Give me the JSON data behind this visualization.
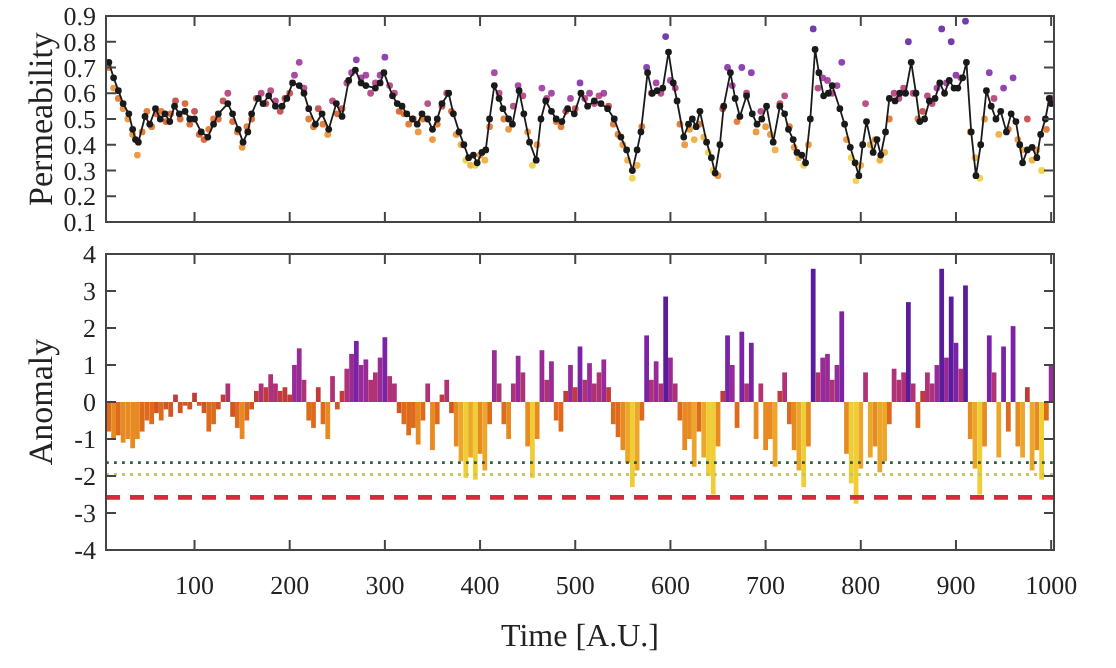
{
  "chart_data": [
    {
      "type": "scatter",
      "ylabel": "Permeability",
      "xlim": [
        7,
        1003
      ],
      "ylim": [
        0.1,
        0.9
      ],
      "xticks": [
        100,
        200,
        300,
        400,
        500,
        600,
        700,
        800,
        900,
        1000
      ],
      "yticks": [
        0.1,
        0.2,
        0.3,
        0.4,
        0.5,
        0.6,
        0.7,
        0.8,
        0.9
      ],
      "tick_labels": "y",
      "marker": "circle",
      "series": [
        {
          "x": [
            10,
            15,
            20,
            25,
            30,
            35,
            40,
            45,
            50,
            55,
            60,
            65,
            70,
            75,
            80,
            85,
            90,
            95,
            100,
            105,
            110,
            115,
            120,
            125,
            130,
            135,
            140,
            145,
            150,
            155,
            160,
            165,
            170,
            175,
            180,
            185,
            190,
            195,
            200,
            205,
            210,
            215,
            220,
            225,
            230,
            235,
            240,
            245,
            250,
            255,
            260,
            265,
            270,
            275,
            280,
            285,
            290,
            295,
            300,
            305,
            310,
            315,
            320,
            325,
            330,
            335,
            340,
            345,
            350,
            355,
            360,
            365,
            370,
            375,
            380,
            385,
            390,
            395,
            400,
            405,
            410,
            415,
            420,
            425,
            430,
            435,
            440,
            445,
            450,
            455,
            460,
            465,
            470,
            475,
            480,
            485,
            490,
            495,
            500,
            505,
            510,
            515,
            520,
            525,
            530,
            535,
            540,
            545,
            550,
            555,
            560,
            565,
            570,
            575,
            580,
            585,
            590,
            595,
            600,
            605,
            610,
            615,
            620,
            625,
            630,
            635,
            640,
            645,
            650,
            655,
            660,
            665,
            670,
            675,
            680,
            685,
            690,
            695,
            700,
            705,
            710,
            715,
            720,
            725,
            730,
            735,
            740,
            745,
            750,
            755,
            760,
            765,
            770,
            775,
            780,
            785,
            790,
            795,
            800,
            805,
            810,
            815,
            820,
            825,
            830,
            835,
            840,
            845,
            850,
            855,
            860,
            865,
            870,
            875,
            880,
            885,
            890,
            895,
            900,
            905,
            910,
            915,
            920,
            925,
            930,
            935,
            940,
            945,
            950,
            955,
            960,
            965,
            970,
            975,
            980,
            985,
            990,
            995,
            1000
          ],
          "values": [
            0.7,
            0.62,
            0.58,
            0.54,
            0.5,
            0.44,
            0.36,
            0.45,
            0.53,
            0.47,
            0.52,
            0.53,
            0.49,
            0.52,
            0.57,
            0.5,
            0.56,
            0.48,
            0.53,
            0.44,
            0.42,
            0.46,
            0.5,
            0.5,
            0.57,
            0.6,
            0.49,
            0.45,
            0.39,
            0.47,
            0.5,
            0.58,
            0.6,
            0.56,
            0.61,
            0.57,
            0.53,
            0.58,
            0.6,
            0.67,
            0.72,
            0.62,
            0.5,
            0.47,
            0.54,
            0.48,
            0.44,
            0.57,
            0.52,
            0.54,
            0.64,
            0.68,
            0.73,
            0.66,
            0.67,
            0.6,
            0.64,
            0.67,
            0.74,
            0.63,
            0.6,
            0.53,
            0.52,
            0.48,
            0.5,
            0.45,
            0.5,
            0.56,
            0.42,
            0.48,
            0.55,
            0.6,
            0.53,
            0.44,
            0.4,
            0.34,
            0.32,
            0.32,
            0.36,
            0.34,
            0.47,
            0.68,
            0.6,
            0.5,
            0.46,
            0.55,
            0.63,
            0.59,
            0.45,
            0.32,
            0.4,
            0.62,
            0.58,
            0.6,
            0.49,
            0.47,
            0.53,
            0.58,
            0.54,
            0.64,
            0.58,
            0.6,
            0.56,
            0.59,
            0.6,
            0.55,
            0.48,
            0.44,
            0.4,
            0.34,
            0.27,
            0.32,
            0.47,
            0.7,
            0.6,
            0.64,
            0.6,
            0.82,
            0.65,
            0.62,
            0.48,
            0.4,
            0.46,
            0.42,
            0.48,
            0.43,
            0.37,
            0.3,
            0.28,
            0.54,
            0.7,
            0.63,
            0.49,
            0.7,
            0.6,
            0.68,
            0.45,
            0.53,
            0.47,
            0.44,
            0.38,
            0.56,
            0.59,
            0.47,
            0.39,
            0.35,
            0.32,
            0.4,
            0.85,
            0.62,
            0.66,
            0.65,
            0.6,
            0.63,
            0.72,
            0.42,
            0.35,
            0.26,
            0.32,
            0.56,
            0.4,
            0.42,
            0.34,
            0.37,
            0.5,
            0.6,
            0.58,
            0.62,
            0.8,
            0.6,
            0.5,
            0.53,
            0.59,
            0.56,
            0.62,
            0.85,
            0.64,
            0.8,
            0.67,
            0.66,
            0.88,
            0.45,
            0.35,
            0.27,
            0.5,
            0.68,
            0.58,
            0.44,
            0.62,
            0.46,
            0.66,
            0.42,
            0.38,
            0.5,
            0.34,
            0.38,
            0.3,
            0.46,
            0.58
          ],
          "colors": [
            "#de6a1c",
            "#e78a22",
            "#de6a1c",
            "#e78a22",
            "#e78a22",
            "#e78a22",
            "#e78a22",
            "#de6a1c",
            "#de6a1c",
            "#de6a1c",
            "#d3551f",
            "#de6a1c",
            "#d3551f",
            "#d3551f",
            "#c23b3b",
            "#d3551f",
            "#d3551f",
            "#d3551f",
            "#c23b3b",
            "#d3551f",
            "#d3551f",
            "#de6a1c",
            "#de6a1c",
            "#d3551f",
            "#c23b3b",
            "#b03276",
            "#d3551f",
            "#de6a1c",
            "#e78a22",
            "#de6a1c",
            "#d3551f",
            "#c23b3b",
            "#b03276",
            "#c23b3b",
            "#b03276",
            "#b03276",
            "#c23b3b",
            "#c23b3b",
            "#c23b3b",
            "#982b98",
            "#982b98",
            "#b03276",
            "#de6a1c",
            "#de6a1c",
            "#c23b3b",
            "#de6a1c",
            "#e78a22",
            "#b03276",
            "#d3551f",
            "#c23b3b",
            "#b03276",
            "#982b98",
            "#7b23a6",
            "#982b98",
            "#982b98",
            "#b03276",
            "#b03276",
            "#982b98",
            "#7b23a6",
            "#b03276",
            "#b03276",
            "#d3551f",
            "#de6a1c",
            "#de6a1c",
            "#de6a1c",
            "#e78a22",
            "#de6a1c",
            "#b03276",
            "#e78a22",
            "#de6a1c",
            "#c23b3b",
            "#b03276",
            "#d3551f",
            "#e78a22",
            "#eca72a",
            "#f0cd34",
            "#eca72a",
            "#f0cd34",
            "#e78a22",
            "#eca72a",
            "#de6a1c",
            "#982b98",
            "#b03276",
            "#de6a1c",
            "#e78a22",
            "#b03276",
            "#982b98",
            "#b03276",
            "#e78a22",
            "#f0cd34",
            "#e78a22",
            "#982b98",
            "#b03276",
            "#982b98",
            "#de6a1c",
            "#de6a1c",
            "#c23b3b",
            "#982b98",
            "#c23b3b",
            "#7b23a6",
            "#b03276",
            "#982b98",
            "#b03276",
            "#b03276",
            "#982b98",
            "#c23b3b",
            "#de6a1c",
            "#de6a1c",
            "#e78a22",
            "#eca72a",
            "#f0cd34",
            "#eca72a",
            "#de6a1c",
            "#7b23a6",
            "#b03276",
            "#982b98",
            "#b03276",
            "#5a1b9c",
            "#982b98",
            "#b03276",
            "#de6a1c",
            "#e78a22",
            "#e78a22",
            "#eca72a",
            "#de6a1c",
            "#eca72a",
            "#f0cd34",
            "#f0cd34",
            "#e78a22",
            "#c23b3b",
            "#7b23a6",
            "#982b98",
            "#de6a1c",
            "#7b23a6",
            "#b03276",
            "#7b23a6",
            "#e78a22",
            "#b03276",
            "#e78a22",
            "#e78a22",
            "#eca72a",
            "#c23b3b",
            "#b03276",
            "#de6a1c",
            "#e78a22",
            "#eca72a",
            "#f0cd34",
            "#e78a22",
            "#5a1b9c",
            "#b03276",
            "#982b98",
            "#982b98",
            "#b03276",
            "#982b98",
            "#7b23a6",
            "#e78a22",
            "#f0cd34",
            "#f0cd34",
            "#eca72a",
            "#b03276",
            "#eca72a",
            "#e78a22",
            "#eca72a",
            "#eca72a",
            "#de6a1c",
            "#b03276",
            "#b03276",
            "#b03276",
            "#5a1b9c",
            "#b03276",
            "#de6a1c",
            "#c23b3b",
            "#b03276",
            "#b03276",
            "#982b98",
            "#5a1b9c",
            "#982b98",
            "#5a1b9c",
            "#7b23a6",
            "#b03276",
            "#5a1b9c",
            "#e78a22",
            "#eca72a",
            "#f0cd34",
            "#e78a22",
            "#7b23a6",
            "#b03276",
            "#eca72a",
            "#7b23a6",
            "#de6a1c",
            "#7b23a6",
            "#e78a22",
            "#eca72a",
            "#c23b3b",
            "#eca72a",
            "#e78a22",
            "#f0cd34",
            "#de6a1c",
            "#982b98"
          ]
        },
        {
          "type": "line",
          "color": "#1a1a1a",
          "x": [
            10,
            15,
            20,
            25,
            31,
            35,
            38,
            41,
            48,
            53,
            59,
            64,
            69,
            74,
            79,
            84,
            90,
            95,
            100,
            107,
            114,
            120,
            125,
            135,
            140,
            146,
            151,
            156,
            160,
            167,
            172,
            178,
            185,
            192,
            197,
            203,
            210,
            215,
            220,
            227,
            234,
            241,
            249,
            255,
            262,
            269,
            275,
            280,
            290,
            295,
            299,
            308,
            313,
            318,
            323,
            329,
            334,
            339,
            345,
            350,
            355,
            360,
            367,
            372,
            378,
            383,
            388,
            393,
            397,
            402,
            406,
            410,
            415,
            420,
            424,
            430,
            434,
            441,
            446,
            452,
            459,
            464,
            469,
            475,
            480,
            486,
            492,
            499,
            506,
            513,
            520,
            527,
            534,
            541,
            548,
            554,
            560,
            565,
            569,
            576,
            581,
            586,
            592,
            598,
            603,
            607,
            614,
            619,
            623,
            627,
            631,
            638,
            643,
            647,
            652,
            656,
            663,
            668,
            673,
            680,
            686,
            691,
            696,
            701,
            708,
            715,
            720,
            724,
            729,
            733,
            738,
            742,
            747,
            752,
            756,
            761,
            766,
            770,
            778,
            783,
            789,
            794,
            798,
            802,
            806,
            813,
            817,
            821,
            826,
            830,
            836,
            841,
            847,
            853,
            858,
            862,
            867,
            872,
            878,
            883,
            888,
            893,
            898,
            902,
            907,
            911,
            916,
            921,
            926,
            932,
            937,
            942,
            947,
            953,
            958,
            963,
            967,
            970,
            975,
            980,
            985,
            989,
            994,
            998,
            1000
          ],
          "values": [
            0.72,
            0.66,
            0.61,
            0.56,
            0.52,
            0.46,
            0.42,
            0.41,
            0.51,
            0.48,
            0.54,
            0.5,
            0.52,
            0.49,
            0.55,
            0.52,
            0.53,
            0.5,
            0.5,
            0.45,
            0.43,
            0.48,
            0.52,
            0.56,
            0.52,
            0.46,
            0.41,
            0.45,
            0.52,
            0.58,
            0.56,
            0.59,
            0.55,
            0.55,
            0.58,
            0.64,
            0.63,
            0.6,
            0.54,
            0.48,
            0.52,
            0.46,
            0.56,
            0.51,
            0.65,
            0.69,
            0.64,
            0.63,
            0.62,
            0.64,
            0.68,
            0.59,
            0.56,
            0.55,
            0.52,
            0.5,
            0.48,
            0.52,
            0.5,
            0.46,
            0.5,
            0.56,
            0.6,
            0.52,
            0.45,
            0.4,
            0.35,
            0.36,
            0.33,
            0.37,
            0.38,
            0.5,
            0.63,
            0.58,
            0.54,
            0.5,
            0.48,
            0.61,
            0.52,
            0.41,
            0.34,
            0.5,
            0.57,
            0.53,
            0.5,
            0.49,
            0.54,
            0.52,
            0.6,
            0.55,
            0.57,
            0.56,
            0.54,
            0.5,
            0.43,
            0.38,
            0.3,
            0.38,
            0.45,
            0.68,
            0.6,
            0.61,
            0.62,
            0.76,
            0.64,
            0.57,
            0.43,
            0.48,
            0.5,
            0.47,
            0.53,
            0.41,
            0.35,
            0.29,
            0.4,
            0.55,
            0.68,
            0.58,
            0.51,
            0.59,
            0.52,
            0.48,
            0.5,
            0.55,
            0.41,
            0.55,
            0.52,
            0.46,
            0.42,
            0.37,
            0.36,
            0.33,
            0.5,
            0.77,
            0.68,
            0.59,
            0.6,
            0.63,
            0.54,
            0.48,
            0.39,
            0.33,
            0.28,
            0.4,
            0.49,
            0.37,
            0.42,
            0.36,
            0.45,
            0.58,
            0.57,
            0.6,
            0.6,
            0.72,
            0.6,
            0.49,
            0.5,
            0.57,
            0.58,
            0.64,
            0.6,
            0.65,
            0.62,
            0.62,
            0.66,
            0.72,
            0.45,
            0.28,
            0.4,
            0.61,
            0.55,
            0.5,
            0.53,
            0.45,
            0.52,
            0.49,
            0.4,
            0.33,
            0.38,
            0.39,
            0.35,
            0.44,
            0.5,
            0.58,
            0.56
          ]
        }
      ]
    },
    {
      "type": "bar",
      "xlabel": "Time [A.U.]",
      "ylabel": "Anomaly",
      "xlim": [
        7,
        1003
      ],
      "ylim": [
        -4,
        4
      ],
      "xticks": [
        100,
        200,
        300,
        400,
        500,
        600,
        700,
        800,
        900,
        1000
      ],
      "yticks": [
        -4,
        -3,
        -2,
        -1,
        0,
        1,
        2,
        3,
        4
      ],
      "x": [
        10,
        15,
        20,
        25,
        30,
        35,
        40,
        45,
        50,
        55,
        60,
        65,
        70,
        75,
        80,
        85,
        90,
        95,
        100,
        105,
        110,
        115,
        120,
        125,
        130,
        135,
        140,
        145,
        150,
        155,
        160,
        165,
        170,
        175,
        180,
        185,
        190,
        195,
        200,
        205,
        210,
        215,
        220,
        225,
        230,
        235,
        240,
        245,
        250,
        255,
        260,
        265,
        270,
        275,
        280,
        285,
        290,
        295,
        300,
        305,
        310,
        315,
        320,
        325,
        330,
        335,
        340,
        345,
        350,
        355,
        360,
        365,
        370,
        375,
        380,
        385,
        390,
        395,
        400,
        405,
        410,
        415,
        420,
        425,
        430,
        435,
        440,
        445,
        450,
        455,
        460,
        465,
        470,
        475,
        480,
        485,
        490,
        495,
        500,
        505,
        510,
        515,
        520,
        525,
        530,
        535,
        540,
        545,
        550,
        555,
        560,
        565,
        570,
        575,
        580,
        585,
        590,
        595,
        600,
        605,
        610,
        615,
        620,
        625,
        630,
        635,
        640,
        645,
        650,
        655,
        660,
        665,
        670,
        675,
        680,
        685,
        690,
        695,
        700,
        705,
        710,
        715,
        720,
        725,
        730,
        735,
        740,
        745,
        750,
        755,
        760,
        765,
        770,
        775,
        780,
        785,
        790,
        795,
        800,
        805,
        810,
        815,
        820,
        825,
        830,
        835,
        840,
        845,
        850,
        855,
        860,
        865,
        870,
        875,
        880,
        885,
        890,
        895,
        900,
        905,
        910,
        915,
        920,
        925,
        930,
        935,
        940,
        945,
        950,
        955,
        960,
        965,
        970,
        975,
        980,
        985,
        990,
        995,
        1000
      ],
      "values": [
        -0.8,
        -1.0,
        -0.9,
        -1.1,
        -1.0,
        -1.25,
        -1.0,
        -0.8,
        -0.5,
        -0.6,
        -0.3,
        -0.5,
        -0.2,
        -0.4,
        0.2,
        -0.3,
        -0.1,
        -0.2,
        0.25,
        -0.1,
        -0.3,
        -0.8,
        -0.6,
        -0.2,
        0.2,
        0.5,
        -0.4,
        -0.7,
        -1.0,
        -0.5,
        -0.2,
        0.3,
        0.5,
        0.4,
        0.75,
        0.5,
        0.3,
        0.4,
        0.2,
        1.0,
        1.45,
        0.6,
        -0.5,
        -0.7,
        0.4,
        -0.6,
        -1.0,
        0.7,
        -0.2,
        0.3,
        0.9,
        1.3,
        1.65,
        1.0,
        1.15,
        0.6,
        0.8,
        1.2,
        1.75,
        0.7,
        0.5,
        -0.3,
        -0.6,
        -0.9,
        -0.7,
        -1.15,
        -0.5,
        0.5,
        -1.3,
        -0.6,
        0.2,
        0.6,
        -0.3,
        -1.2,
        -1.6,
        -2.05,
        -1.5,
        -2.1,
        -1.4,
        -1.85,
        -0.6,
        1.4,
        0.5,
        -0.6,
        -1.0,
        0.5,
        1.25,
        0.8,
        -1.2,
        -2.05,
        -1.0,
        1.4,
        0.6,
        1.1,
        -0.5,
        -0.8,
        0.3,
        1.0,
        0.4,
        1.5,
        0.6,
        1.05,
        0.5,
        0.8,
        1.15,
        0.4,
        -0.6,
        -0.95,
        -1.3,
        -1.65,
        -2.3,
        -1.85,
        -0.5,
        1.8,
        0.6,
        1.1,
        0.5,
        2.85,
        1.2,
        0.5,
        -0.5,
        -1.3,
        -1.0,
        -1.75,
        -0.8,
        -1.5,
        -2.0,
        -2.5,
        -1.2,
        0.3,
        1.8,
        1.0,
        -0.7,
        1.9,
        0.5,
        1.6,
        -1.0,
        0.5,
        -1.3,
        -1.0,
        -1.75,
        0.3,
        0.8,
        -0.6,
        -1.3,
        -1.85,
        -2.3,
        -1.2,
        3.6,
        0.8,
        1.2,
        1.3,
        0.6,
        1.0,
        2.45,
        -1.4,
        -2.2,
        -2.75,
        -1.8,
        0.8,
        -1.5,
        -1.2,
        -1.9,
        -1.6,
        -0.6,
        0.9,
        0.6,
        0.8,
        2.7,
        0.5,
        -0.7,
        0.3,
        0.8,
        0.5,
        1.0,
        3.6,
        1.2,
        2.85,
        1.6,
        0.9,
        3.15,
        -1.0,
        -1.8,
        -2.5,
        -1.2,
        1.8,
        0.8,
        -1.5,
        1.5,
        -0.8,
        2.05,
        -1.2,
        -1.5,
        0.4,
        -1.85,
        -1.3,
        -2.1,
        -0.5,
        1.0
      ],
      "colors": [
        "#de6a1c",
        "#e78a22",
        "#de6a1c",
        "#e78a22",
        "#e78a22",
        "#e78a22",
        "#e78a22",
        "#de6a1c",
        "#de6a1c",
        "#de6a1c",
        "#d3551f",
        "#de6a1c",
        "#d3551f",
        "#d3551f",
        "#c23b3b",
        "#d3551f",
        "#d3551f",
        "#d3551f",
        "#c23b3b",
        "#d3551f",
        "#d3551f",
        "#de6a1c",
        "#de6a1c",
        "#d3551f",
        "#c23b3b",
        "#b03276",
        "#d3551f",
        "#de6a1c",
        "#e78a22",
        "#de6a1c",
        "#d3551f",
        "#c23b3b",
        "#b03276",
        "#c23b3b",
        "#b03276",
        "#b03276",
        "#c23b3b",
        "#c23b3b",
        "#c23b3b",
        "#982b98",
        "#982b98",
        "#b03276",
        "#de6a1c",
        "#de6a1c",
        "#c23b3b",
        "#de6a1c",
        "#e78a22",
        "#b03276",
        "#d3551f",
        "#c23b3b",
        "#b03276",
        "#982b98",
        "#7b23a6",
        "#982b98",
        "#982b98",
        "#b03276",
        "#b03276",
        "#982b98",
        "#7b23a6",
        "#b03276",
        "#b03276",
        "#d3551f",
        "#de6a1c",
        "#de6a1c",
        "#de6a1c",
        "#e78a22",
        "#de6a1c",
        "#b03276",
        "#e78a22",
        "#de6a1c",
        "#c23b3b",
        "#b03276",
        "#d3551f",
        "#e78a22",
        "#eca72a",
        "#f0cd34",
        "#eca72a",
        "#f0cd34",
        "#e78a22",
        "#eca72a",
        "#de6a1c",
        "#982b98",
        "#b03276",
        "#de6a1c",
        "#e78a22",
        "#b03276",
        "#982b98",
        "#b03276",
        "#e78a22",
        "#f0cd34",
        "#e78a22",
        "#982b98",
        "#b03276",
        "#982b98",
        "#de6a1c",
        "#de6a1c",
        "#c23b3b",
        "#982b98",
        "#c23b3b",
        "#7b23a6",
        "#b03276",
        "#982b98",
        "#b03276",
        "#b03276",
        "#982b98",
        "#c23b3b",
        "#de6a1c",
        "#de6a1c",
        "#e78a22",
        "#eca72a",
        "#f0cd34",
        "#eca72a",
        "#de6a1c",
        "#7b23a6",
        "#b03276",
        "#982b98",
        "#b03276",
        "#5a1b9c",
        "#982b98",
        "#b03276",
        "#de6a1c",
        "#e78a22",
        "#e78a22",
        "#eca72a",
        "#de6a1c",
        "#eca72a",
        "#f0cd34",
        "#f0cd34",
        "#e78a22",
        "#c23b3b",
        "#7b23a6",
        "#982b98",
        "#de6a1c",
        "#7b23a6",
        "#b03276",
        "#7b23a6",
        "#e78a22",
        "#b03276",
        "#e78a22",
        "#e78a22",
        "#eca72a",
        "#c23b3b",
        "#b03276",
        "#de6a1c",
        "#e78a22",
        "#eca72a",
        "#f0cd34",
        "#e78a22",
        "#5a1b9c",
        "#b03276",
        "#982b98",
        "#982b98",
        "#b03276",
        "#982b98",
        "#7b23a6",
        "#e78a22",
        "#f0cd34",
        "#f0cd34",
        "#eca72a",
        "#b03276",
        "#eca72a",
        "#e78a22",
        "#eca72a",
        "#eca72a",
        "#de6a1c",
        "#b03276",
        "#b03276",
        "#b03276",
        "#5a1b9c",
        "#b03276",
        "#de6a1c",
        "#c23b3b",
        "#b03276",
        "#b03276",
        "#982b98",
        "#5a1b9c",
        "#982b98",
        "#5a1b9c",
        "#7b23a6",
        "#b03276",
        "#5a1b9c",
        "#e78a22",
        "#eca72a",
        "#f0cd34",
        "#e78a22",
        "#7b23a6",
        "#b03276",
        "#eca72a",
        "#7b23a6",
        "#de6a1c",
        "#7b23a6",
        "#e78a22",
        "#eca72a",
        "#c23b3b",
        "#eca72a",
        "#e78a22",
        "#f0cd34",
        "#de6a1c",
        "#982b98"
      ],
      "ref_lines": [
        {
          "axis": "y",
          "value": -1.64,
          "color": "#2f5f3f",
          "line_style": "dotted"
        },
        {
          "axis": "y",
          "value": -1.96,
          "color": "#c3c65a",
          "line_style": "dotted"
        },
        {
          "axis": "y",
          "value": -2.58,
          "color": "#d9283a",
          "line_style": "dashed"
        }
      ]
    }
  ]
}
